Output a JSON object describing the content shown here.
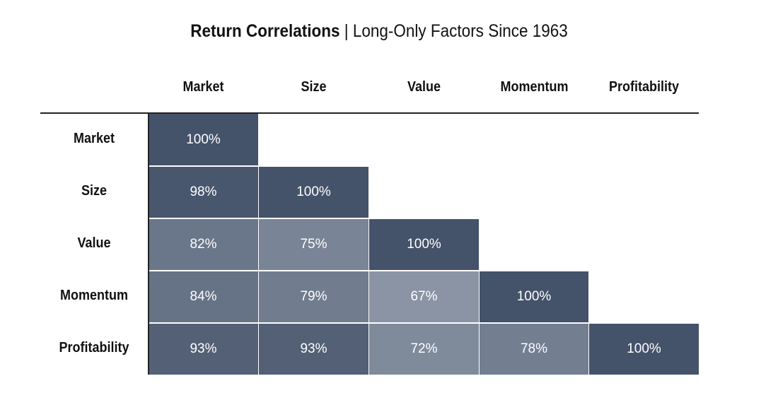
{
  "chart_data": {
    "type": "heatmap",
    "title_bold": "Return Correlations",
    "title_sep": "|",
    "title_rest": "Long-Only Factors Since 1963",
    "columns": [
      "Market",
      "Size",
      "Value",
      "Momentum",
      "Profitability"
    ],
    "rows": [
      "Market",
      "Size",
      "Value",
      "Momentum",
      "Profitability"
    ],
    "values": [
      [
        100,
        null,
        null,
        null,
        null
      ],
      [
        98,
        100,
        null,
        null,
        null
      ],
      [
        82,
        75,
        100,
        null,
        null
      ],
      [
        84,
        79,
        67,
        100,
        null
      ],
      [
        93,
        93,
        72,
        78,
        100
      ]
    ],
    "value_format": "percent",
    "color_low": "#8a94a4",
    "color_high": "#44526a",
    "text_color": "#ffffff"
  }
}
